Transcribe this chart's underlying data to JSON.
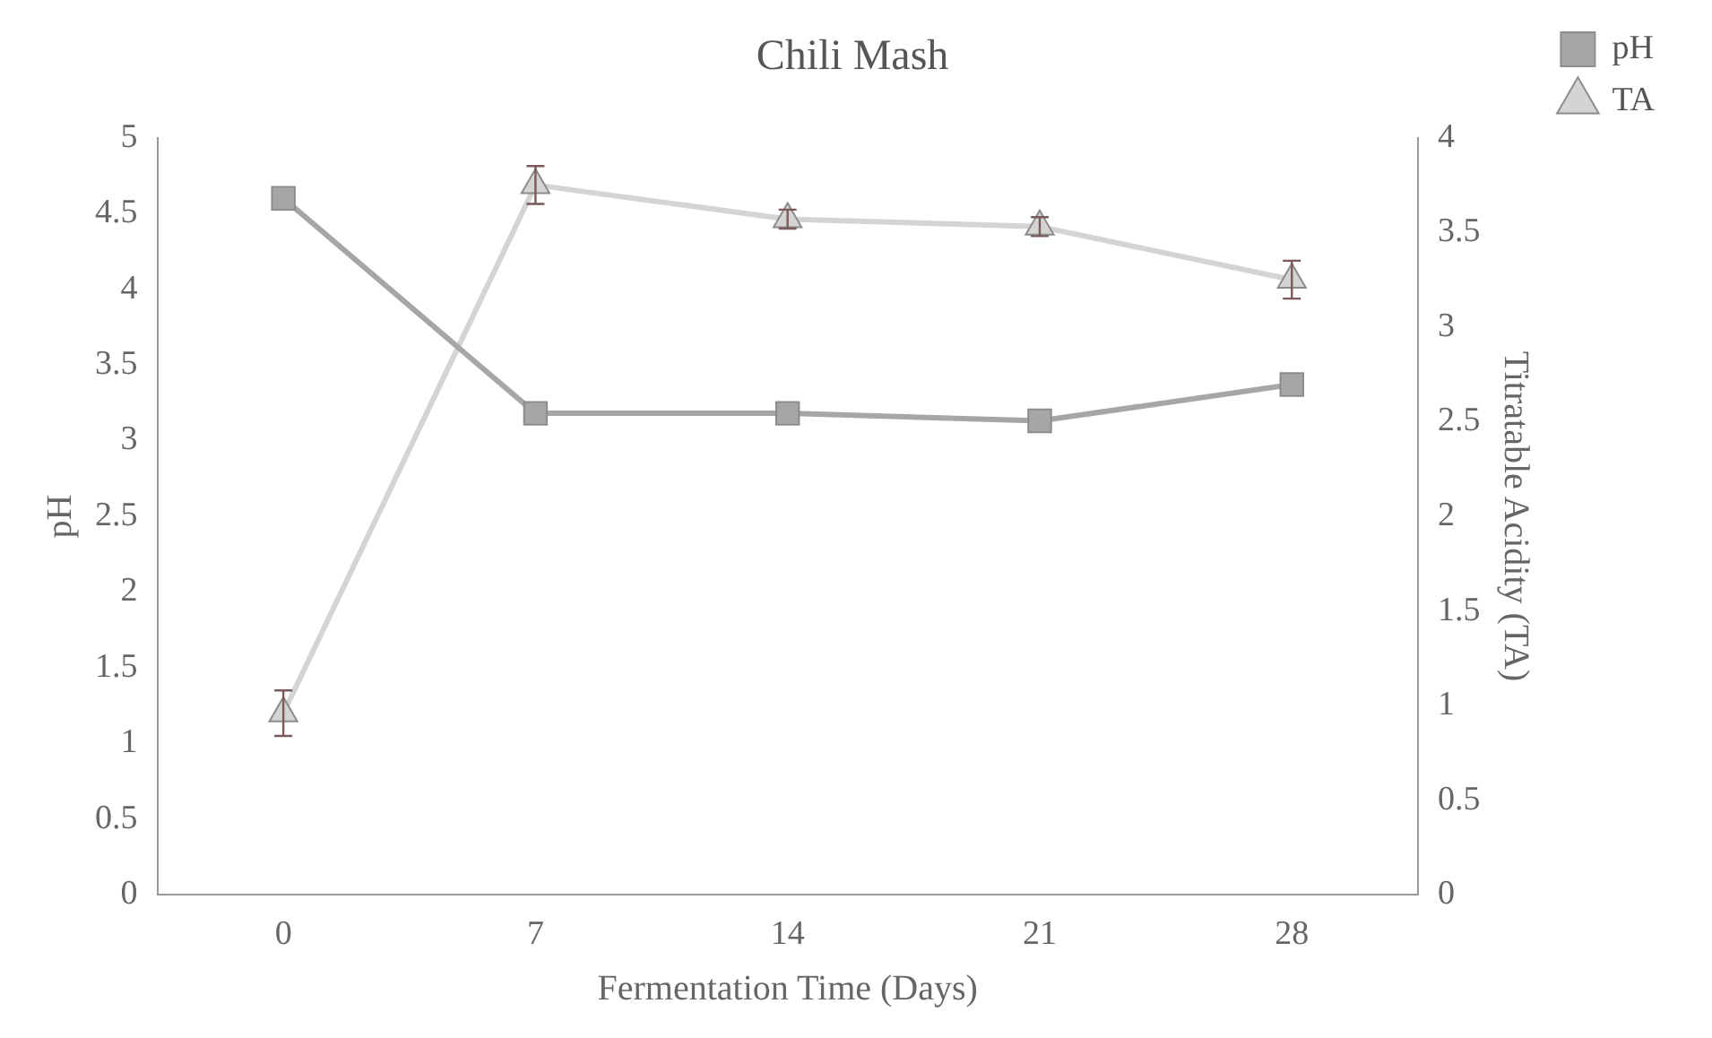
{
  "chart_data": {
    "type": "line",
    "title": "Chili Mash",
    "xlabel": "Fermentation Time (Days)",
    "ylabel": "pH",
    "y2label": "Titratable Acidity (TA)",
    "categories": [
      "0",
      "7",
      "14",
      "21",
      "28"
    ],
    "series": [
      {
        "name": "pH",
        "color": "#a6a6a6",
        "values": [
          4.6,
          3.18,
          3.18,
          3.13,
          3.37
        ],
        "marker": "square"
      },
      {
        "name": "TA",
        "color": "#d4d4d4",
        "values": [
          0.96,
          3.75,
          3.57,
          3.53,
          3.25
        ],
        "marker": "triangle",
        "axis": "y2",
        "errors": [
          0.12,
          0.1,
          0.05,
          0.05,
          0.1
        ]
      }
    ],
    "ylim": [
      0,
      5
    ],
    "yticks": [
      0,
      0.5,
      1,
      1.5,
      2,
      2.5,
      3,
      3.5,
      4,
      4.5,
      5
    ],
    "y2lim": [
      0,
      4
    ],
    "y2ticks": [
      0,
      0.5,
      1,
      1.5,
      2,
      2.5,
      3,
      3.5,
      4
    ],
    "grid": false,
    "legend": "top right"
  }
}
